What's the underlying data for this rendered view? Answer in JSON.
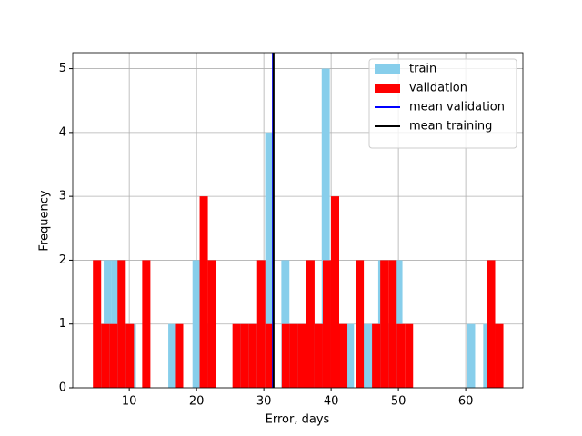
{
  "chart_data": {
    "type": "histogram",
    "x_label": "Error, days",
    "y_label": "Frequency",
    "xlim": [
      1.6,
      68.5
    ],
    "ylim": [
      0,
      5.25
    ],
    "xticks": [
      10,
      20,
      30,
      40,
      50,
      60
    ],
    "yticks": [
      0,
      1,
      2,
      3,
      4,
      5
    ],
    "grid": true,
    "legend_loc": "upper right",
    "series": [
      {
        "name": "train",
        "color": "#87ceeb",
        "bins": [
          5.0,
          6.2,
          7.4,
          8.6,
          9.8,
          11.0,
          12.2,
          13.4,
          14.6,
          15.8,
          17.0,
          18.2,
          19.4,
          20.6,
          21.8,
          23.0,
          24.2,
          25.4,
          26.6,
          27.8,
          29.0,
          30.2,
          31.4,
          32.6,
          33.8,
          35.0,
          36.2,
          37.4,
          38.6,
          39.8,
          41.0,
          42.2,
          43.4,
          44.6,
          45.8,
          47.0,
          48.2,
          49.4,
          50.6,
          51.8,
          53.0,
          54.2,
          55.4,
          56.6,
          57.8,
          59.0,
          60.2,
          61.4,
          62.6,
          63.8,
          65.0
        ],
        "values": [
          1,
          2,
          2,
          1,
          1,
          0,
          0,
          0,
          0,
          1,
          0,
          0,
          2,
          1,
          0,
          0,
          0,
          1,
          1,
          1,
          1,
          4,
          0,
          2,
          1,
          1,
          1,
          1,
          5,
          1,
          0,
          1,
          0,
          1,
          1,
          2,
          1,
          2,
          0,
          0,
          0,
          0,
          0,
          0,
          0,
          0,
          1,
          0,
          1,
          0
        ]
      },
      {
        "name": "validation",
        "color": "#ff0000",
        "bins": [
          4.6,
          5.82,
          7.04,
          8.26,
          9.48,
          10.7,
          11.92,
          13.14,
          14.36,
          15.58,
          16.8,
          18.02,
          19.24,
          20.46,
          21.68,
          22.9,
          24.12,
          25.34,
          26.56,
          27.78,
          29.0,
          30.22,
          31.44,
          32.66,
          33.88,
          35.1,
          36.32,
          37.54,
          38.76,
          39.98,
          41.2,
          42.42,
          43.64,
          44.86,
          46.08,
          47.3,
          48.52,
          49.74,
          50.96,
          52.18,
          53.4,
          54.62,
          55.84,
          57.06,
          58.28,
          59.5,
          60.72,
          61.94,
          63.16,
          64.38,
          65.6
        ],
        "values": [
          2,
          1,
          1,
          2,
          1,
          0,
          2,
          0,
          0,
          0,
          1,
          0,
          0,
          3,
          2,
          0,
          0,
          1,
          1,
          1,
          2,
          1,
          0,
          1,
          1,
          1,
          2,
          1,
          2,
          3,
          1,
          0,
          2,
          0,
          1,
          2,
          2,
          1,
          1,
          0,
          0,
          0,
          0,
          0,
          0,
          0,
          0,
          0,
          2,
          1
        ]
      }
    ],
    "lines": [
      {
        "name": "mean validation",
        "color": "#0000ff",
        "x": 31.35
      },
      {
        "name": "mean training",
        "color": "#000000",
        "x": 31.45
      }
    ]
  }
}
